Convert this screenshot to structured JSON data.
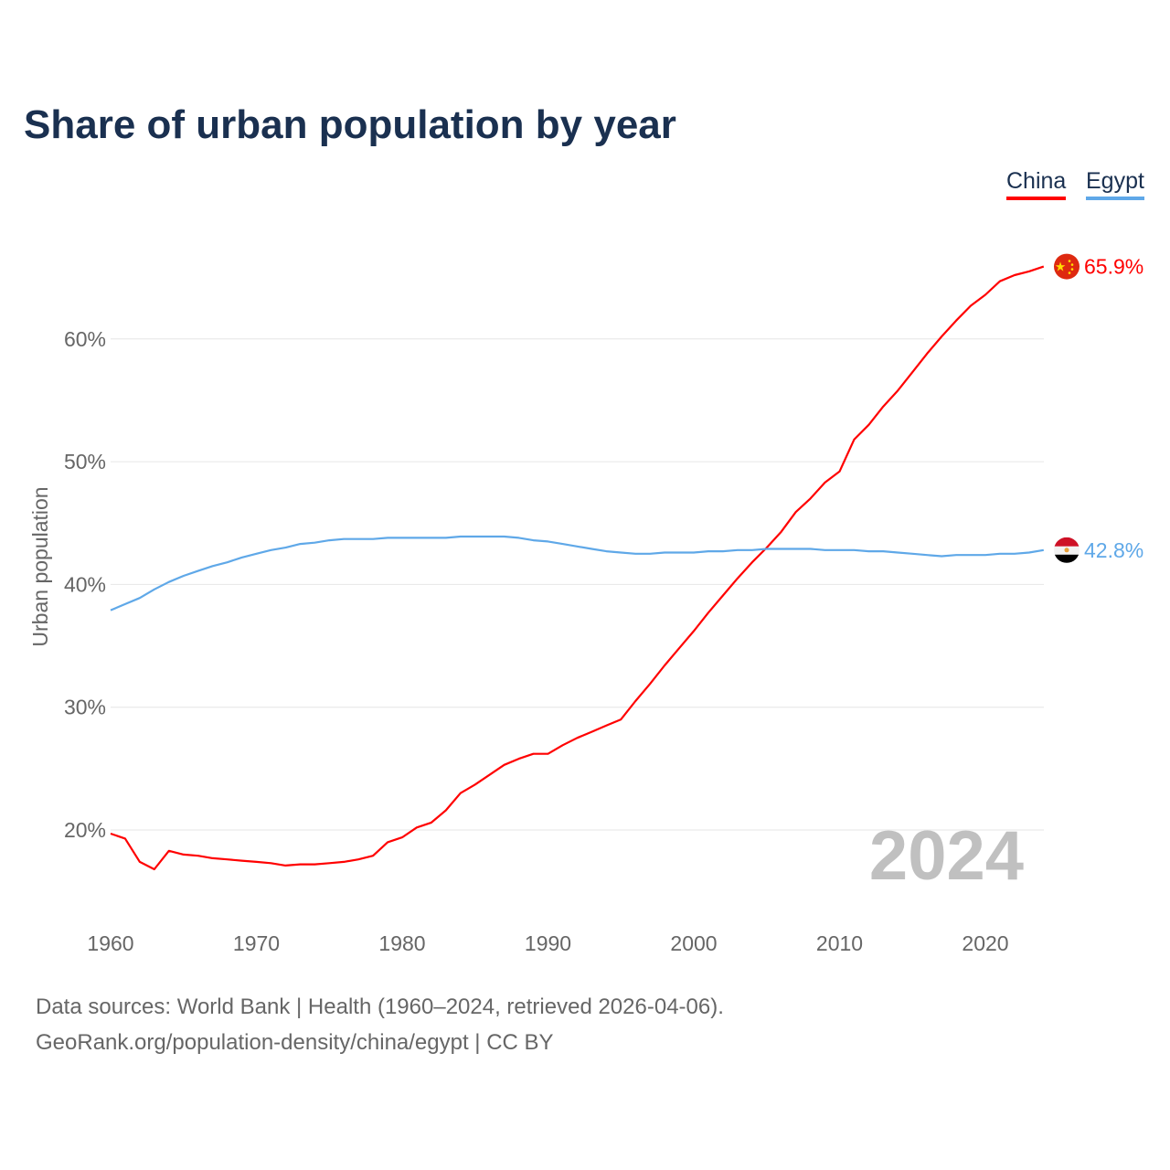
{
  "chart_data": {
    "type": "line",
    "title": "Share of urban population by year",
    "ylabel": "Urban population",
    "xlabel": "",
    "ylim": [
      14,
      68
    ],
    "xlim": [
      1960,
      2024
    ],
    "grid": true,
    "legend_position": "top-right",
    "x_ticks": [
      1960,
      1970,
      1980,
      1990,
      2000,
      2010,
      2020
    ],
    "x_tick_labels": [
      "1960",
      "1970",
      "1980",
      "1990",
      "2000",
      "2010",
      "2020"
    ],
    "y_ticks": [
      20,
      30,
      40,
      50,
      60
    ],
    "y_tick_labels": [
      "20%",
      "30%",
      "40%",
      "50%",
      "60%"
    ],
    "year_watermark": "2024",
    "series": [
      {
        "name": "China",
        "color": "#ff0000",
        "end_label": "65.9%",
        "flag": "china-flag",
        "values": [
          19.7,
          19.3,
          17.4,
          16.8,
          18.3,
          18.0,
          17.9,
          17.7,
          17.6,
          17.5,
          17.4,
          17.3,
          17.1,
          17.2,
          17.2,
          17.3,
          17.4,
          17.6,
          17.9,
          19.0,
          19.4,
          20.2,
          20.6,
          21.6,
          23.0,
          23.7,
          24.5,
          25.3,
          25.8,
          26.2,
          26.2,
          26.9,
          27.5,
          28.0,
          28.5,
          29.0,
          30.5,
          31.9,
          33.4,
          34.8,
          36.2,
          37.7,
          39.1,
          40.5,
          41.8,
          43.0,
          44.3,
          45.9,
          47.0,
          48.3,
          49.2,
          51.8,
          53.0,
          54.5,
          55.8,
          57.3,
          58.8,
          60.2,
          61.5,
          62.7,
          63.6,
          64.7,
          65.2,
          65.5,
          65.9
        ]
      },
      {
        "name": "Egypt",
        "color": "#5fa8e8",
        "end_label": "42.8%",
        "flag": "egypt-flag",
        "values": [
          37.9,
          38.4,
          38.9,
          39.6,
          40.2,
          40.7,
          41.1,
          41.5,
          41.8,
          42.2,
          42.5,
          42.8,
          43.0,
          43.3,
          43.4,
          43.6,
          43.7,
          43.7,
          43.7,
          43.8,
          43.8,
          43.8,
          43.8,
          43.8,
          43.9,
          43.9,
          43.9,
          43.9,
          43.8,
          43.6,
          43.5,
          43.3,
          43.1,
          42.9,
          42.7,
          42.6,
          42.5,
          42.5,
          42.6,
          42.6,
          42.6,
          42.7,
          42.7,
          42.8,
          42.8,
          42.9,
          42.9,
          42.9,
          42.9,
          42.8,
          42.8,
          42.8,
          42.7,
          42.7,
          42.6,
          42.5,
          42.4,
          42.3,
          42.4,
          42.4,
          42.4,
          42.5,
          42.5,
          42.6,
          42.8
        ]
      }
    ]
  },
  "legend": [
    "China",
    "Egypt"
  ],
  "footer": {
    "line1": "Data sources: World Bank | Health (1960–2024, retrieved 2026-04-06).",
    "line2": "GeoRank.org/population-density/china/egypt | CC BY"
  }
}
